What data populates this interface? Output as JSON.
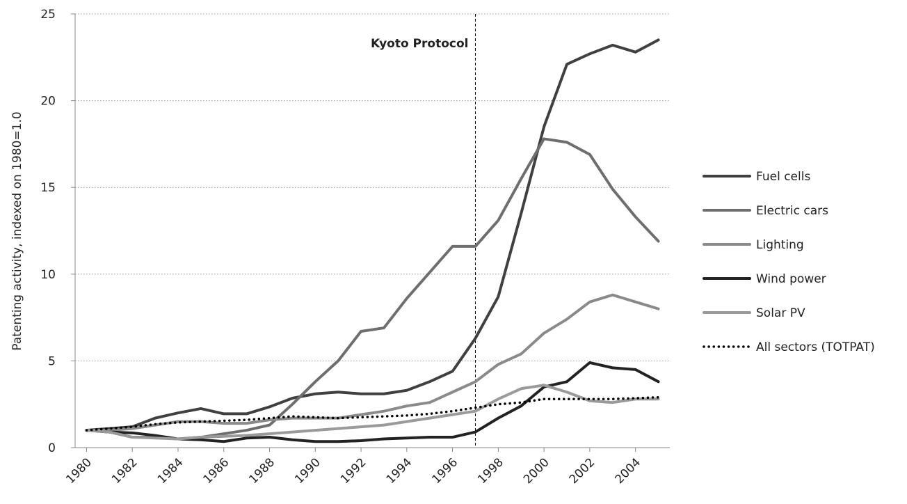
{
  "chart_data": {
    "type": "line",
    "y_label": "Patenting activity, indexed on 1980=1.0",
    "annotation": {
      "text": "Kyoto Protocol",
      "x": 1997
    },
    "x": [
      1980,
      1981,
      1982,
      1983,
      1984,
      1985,
      1986,
      1987,
      1988,
      1989,
      1990,
      1991,
      1992,
      1993,
      1994,
      1995,
      1996,
      1997,
      1998,
      1999,
      2000,
      2001,
      2002,
      2003,
      2004,
      2005
    ],
    "series": [
      {
        "name": "Fuel cells",
        "color": "#404040",
        "style": "solid",
        "values": [
          1,
          1.1,
          1.2,
          1.7,
          2.0,
          2.25,
          1.95,
          1.95,
          2.35,
          2.85,
          3.1,
          3.2,
          3.1,
          3.1,
          3.3,
          3.8,
          4.4,
          6.3,
          8.7,
          13.5,
          18.5,
          22.1,
          22.7,
          23.2,
          22.8,
          23.5
        ]
      },
      {
        "name": "Electric cars",
        "color": "#6e6e6e",
        "style": "solid",
        "values": [
          1,
          0.9,
          0.6,
          0.6,
          0.5,
          0.6,
          0.8,
          1.0,
          1.3,
          2.5,
          3.8,
          5.0,
          6.7,
          6.9,
          8.6,
          10.1,
          11.6,
          11.6,
          13.1,
          15.5,
          17.8,
          17.6,
          16.9,
          14.9,
          13.3,
          11.9
        ]
      },
      {
        "name": "Lighting",
        "color": "#8a8a8a",
        "style": "solid",
        "values": [
          1,
          1.0,
          1.1,
          1.3,
          1.5,
          1.5,
          1.4,
          1.4,
          1.6,
          1.7,
          1.7,
          1.7,
          1.9,
          2.1,
          2.4,
          2.6,
          3.2,
          3.8,
          4.8,
          5.4,
          6.6,
          7.4,
          8.4,
          8.8,
          8.4,
          8.0
        ]
      },
      {
        "name": "Wind power",
        "color": "#222222",
        "style": "solid",
        "values": [
          1,
          0.9,
          0.85,
          0.7,
          0.5,
          0.45,
          0.35,
          0.55,
          0.6,
          0.45,
          0.35,
          0.35,
          0.4,
          0.5,
          0.55,
          0.6,
          0.6,
          0.9,
          1.7,
          2.4,
          3.5,
          3.8,
          4.9,
          4.6,
          4.5,
          3.8
        ]
      },
      {
        "name": "Solar PV",
        "color": "#9a9a9a",
        "style": "solid",
        "values": [
          1,
          0.9,
          0.6,
          0.55,
          0.5,
          0.6,
          0.65,
          0.7,
          0.8,
          0.9,
          1.0,
          1.1,
          1.2,
          1.3,
          1.5,
          1.7,
          1.9,
          2.1,
          2.8,
          3.4,
          3.6,
          3.2,
          2.7,
          2.6,
          2.8,
          2.8
        ]
      },
      {
        "name": "All sectors (TOTPAT)",
        "color": "#000000",
        "style": "dotted",
        "values": [
          1,
          1.1,
          1.2,
          1.35,
          1.45,
          1.5,
          1.55,
          1.6,
          1.7,
          1.8,
          1.75,
          1.7,
          1.75,
          1.8,
          1.85,
          1.95,
          2.1,
          2.3,
          2.5,
          2.6,
          2.8,
          2.8,
          2.8,
          2.8,
          2.85,
          2.9
        ]
      }
    ],
    "xlim": [
      1979.5,
      2005.5
    ],
    "xticks": [
      1980,
      1982,
      1984,
      1986,
      1988,
      1990,
      1992,
      1994,
      1996,
      1998,
      2000,
      2002,
      2004
    ],
    "ylim": [
      0,
      25
    ],
    "yticks": [
      0,
      5,
      10,
      15,
      20,
      25
    ],
    "grid": true,
    "legend": "right"
  }
}
